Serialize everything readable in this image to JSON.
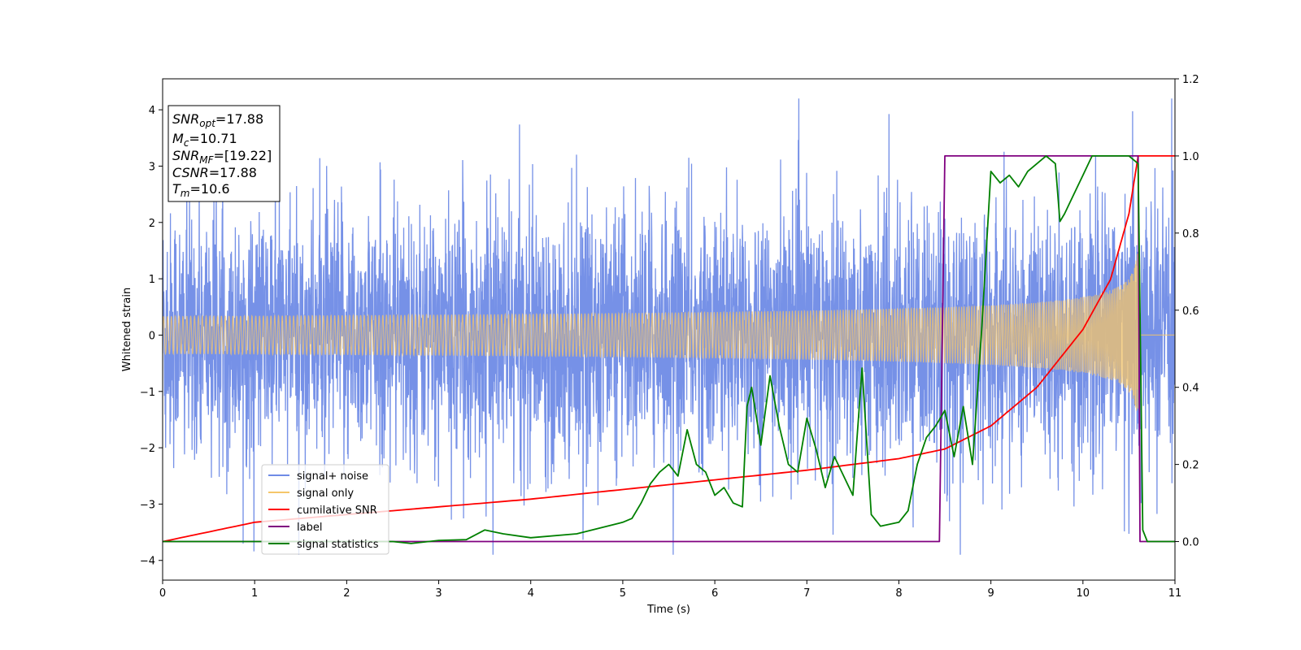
{
  "chart_data": {
    "type": "line",
    "xlabel": "Time (s)",
    "ylabel": "Whitened strain",
    "xlim": [
      0,
      11
    ],
    "ylim": [
      -4.35,
      4.55
    ],
    "y2lim": [
      -0.1,
      1.2
    ],
    "xticks": [
      "0",
      "1",
      "2",
      "3",
      "4",
      "5",
      "6",
      "7",
      "8",
      "9",
      "10",
      "11"
    ],
    "yticks": [
      "−4",
      "−3",
      "−2",
      "−1",
      "0",
      "1",
      "2",
      "3",
      "4"
    ],
    "y2ticks": [
      "0.0",
      "0.2",
      "0.4",
      "0.6",
      "0.8",
      "1.0",
      "1.2"
    ],
    "grid": false,
    "legend_position": "lower-left",
    "annotation": {
      "lines": [
        {
          "name": "SNR",
          "sub": "opt",
          "value": "=17.88"
        },
        {
          "name": "M",
          "sub": "c",
          "value": "=10.71"
        },
        {
          "name": "SNR",
          "sub": "MF",
          "value": "=[19.22]"
        },
        {
          "name": "CSNR",
          "sub": "",
          "value": "=17.88"
        },
        {
          "name": "T",
          "sub": "m",
          "value": "=10.6"
        }
      ]
    },
    "series": [
      {
        "name": "signal+ noise",
        "color": "#6f8be6",
        "axis": "left",
        "noise_std": 1.0,
        "range": [
          -3.9,
          4.2
        ]
      },
      {
        "name": "signal only",
        "color": "#f5c66a",
        "axis": "left",
        "merger_time": 10.6,
        "peak_amplitude": 1.6
      },
      {
        "name": "cumilative SNR",
        "color": "#ff0000",
        "axis": "right",
        "x": [
          0,
          1,
          2,
          3,
          4,
          5,
          6,
          7,
          8,
          8.5,
          9,
          9.5,
          10,
          10.3,
          10.5,
          10.6,
          11
        ],
        "y": [
          0.0,
          0.05,
          0.07,
          0.09,
          0.11,
          0.135,
          0.16,
          0.185,
          0.215,
          0.24,
          0.3,
          0.4,
          0.55,
          0.68,
          0.85,
          1.0,
          1.0
        ]
      },
      {
        "name": "label",
        "color": "#800080",
        "axis": "right",
        "x": [
          0,
          8.44,
          8.5,
          10.6,
          10.62,
          11
        ],
        "y": [
          0,
          0,
          1,
          1,
          0,
          0
        ]
      },
      {
        "name": "signal statistics",
        "color": "#008000",
        "axis": "right",
        "x": [
          0,
          2.5,
          2.7,
          3.0,
          3.3,
          3.5,
          3.7,
          4.0,
          4.5,
          5.0,
          5.1,
          5.2,
          5.3,
          5.4,
          5.5,
          5.6,
          5.7,
          5.8,
          5.9,
          6.0,
          6.1,
          6.2,
          6.3,
          6.35,
          6.4,
          6.5,
          6.6,
          6.7,
          6.8,
          6.9,
          7.0,
          7.1,
          7.2,
          7.3,
          7.5,
          7.6,
          7.7,
          7.8,
          8.0,
          8.1,
          8.2,
          8.3,
          8.4,
          8.5,
          8.6,
          8.7,
          8.8,
          8.9,
          9.0,
          9.1,
          9.2,
          9.3,
          9.4,
          9.5,
          9.6,
          9.7,
          9.75,
          9.8,
          9.9,
          10.0,
          10.1,
          10.5,
          10.6,
          10.65,
          10.7,
          11
        ],
        "y": [
          0.0,
          0.0,
          -0.005,
          0.003,
          0.005,
          0.03,
          0.02,
          0.01,
          0.02,
          0.05,
          0.06,
          0.1,
          0.15,
          0.18,
          0.2,
          0.17,
          0.29,
          0.2,
          0.18,
          0.12,
          0.14,
          0.1,
          0.09,
          0.35,
          0.4,
          0.25,
          0.43,
          0.3,
          0.2,
          0.18,
          0.32,
          0.24,
          0.14,
          0.22,
          0.12,
          0.45,
          0.07,
          0.04,
          0.05,
          0.08,
          0.2,
          0.27,
          0.3,
          0.34,
          0.22,
          0.35,
          0.2,
          0.55,
          0.96,
          0.93,
          0.95,
          0.92,
          0.96,
          0.98,
          1.0,
          0.98,
          0.83,
          0.85,
          0.9,
          0.95,
          1.0,
          1.0,
          0.98,
          0.03,
          0.0,
          0.0
        ]
      }
    ]
  }
}
